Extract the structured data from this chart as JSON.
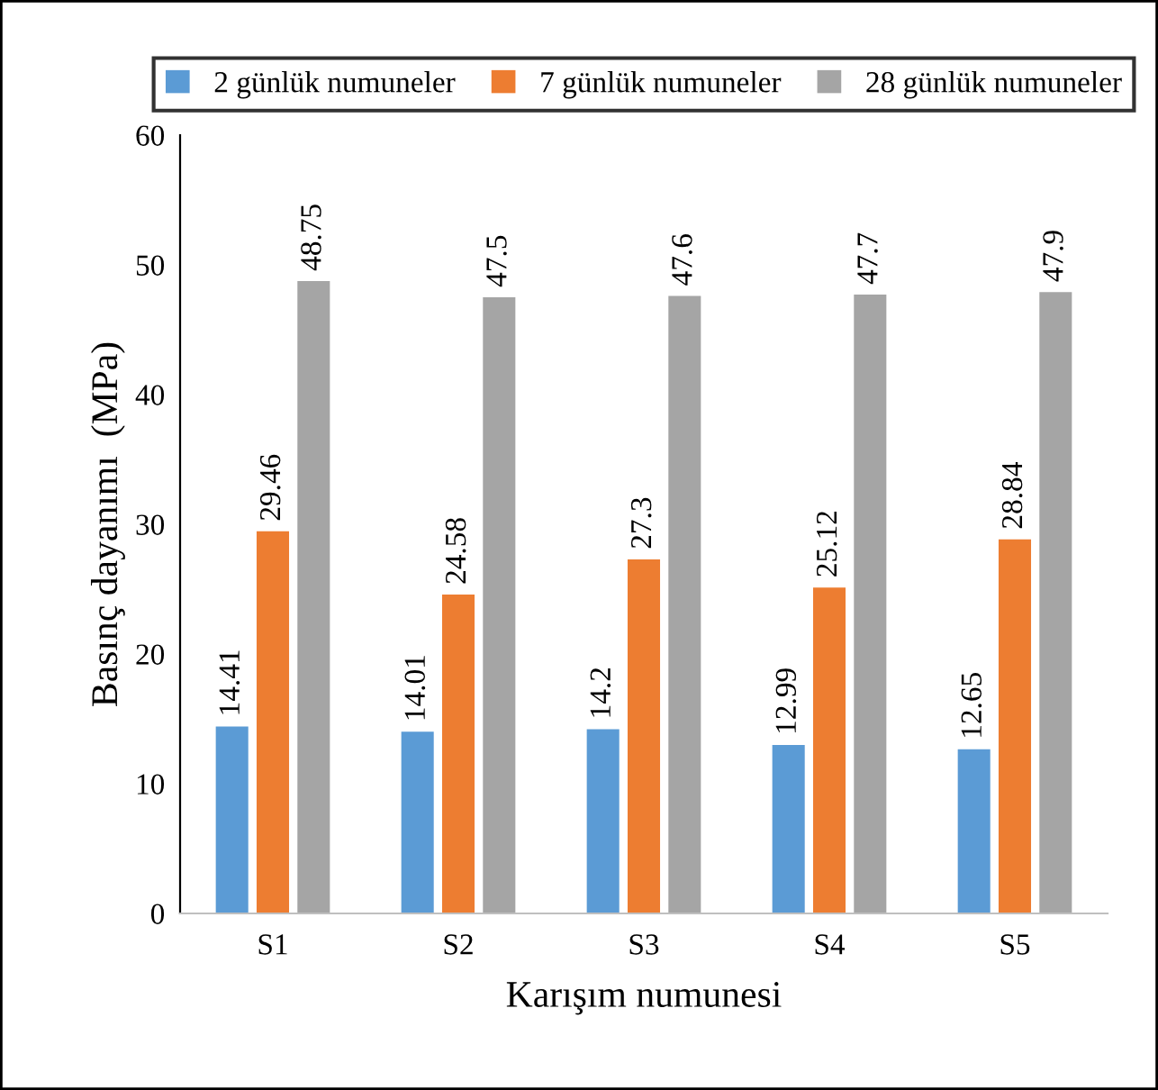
{
  "chart_data": {
    "type": "bar",
    "xlabel": "Karışım numunesi",
    "ylabel": "Basınç dayanımı  (MPa)",
    "categories": [
      "S1",
      "S2",
      "S3",
      "S4",
      "S5"
    ],
    "series": [
      {
        "name": "2 günlük numuneler",
        "color": "#5b9bd5",
        "values": [
          14.41,
          14.01,
          14.2,
          12.99,
          12.65
        ]
      },
      {
        "name": "7 günlük numuneler",
        "color": "#ed7d31",
        "values": [
          29.46,
          24.58,
          27.3,
          25.12,
          28.84
        ]
      },
      {
        "name": "28 günlük numuneler",
        "color": "#a5a5a5",
        "values": [
          48.75,
          47.5,
          47.6,
          47.7,
          47.9
        ]
      }
    ],
    "ylim": [
      0,
      60
    ],
    "yticks": [
      0,
      10,
      20,
      30,
      40,
      50,
      60
    ],
    "data_labels": true,
    "legend": "top",
    "grid": false
  }
}
